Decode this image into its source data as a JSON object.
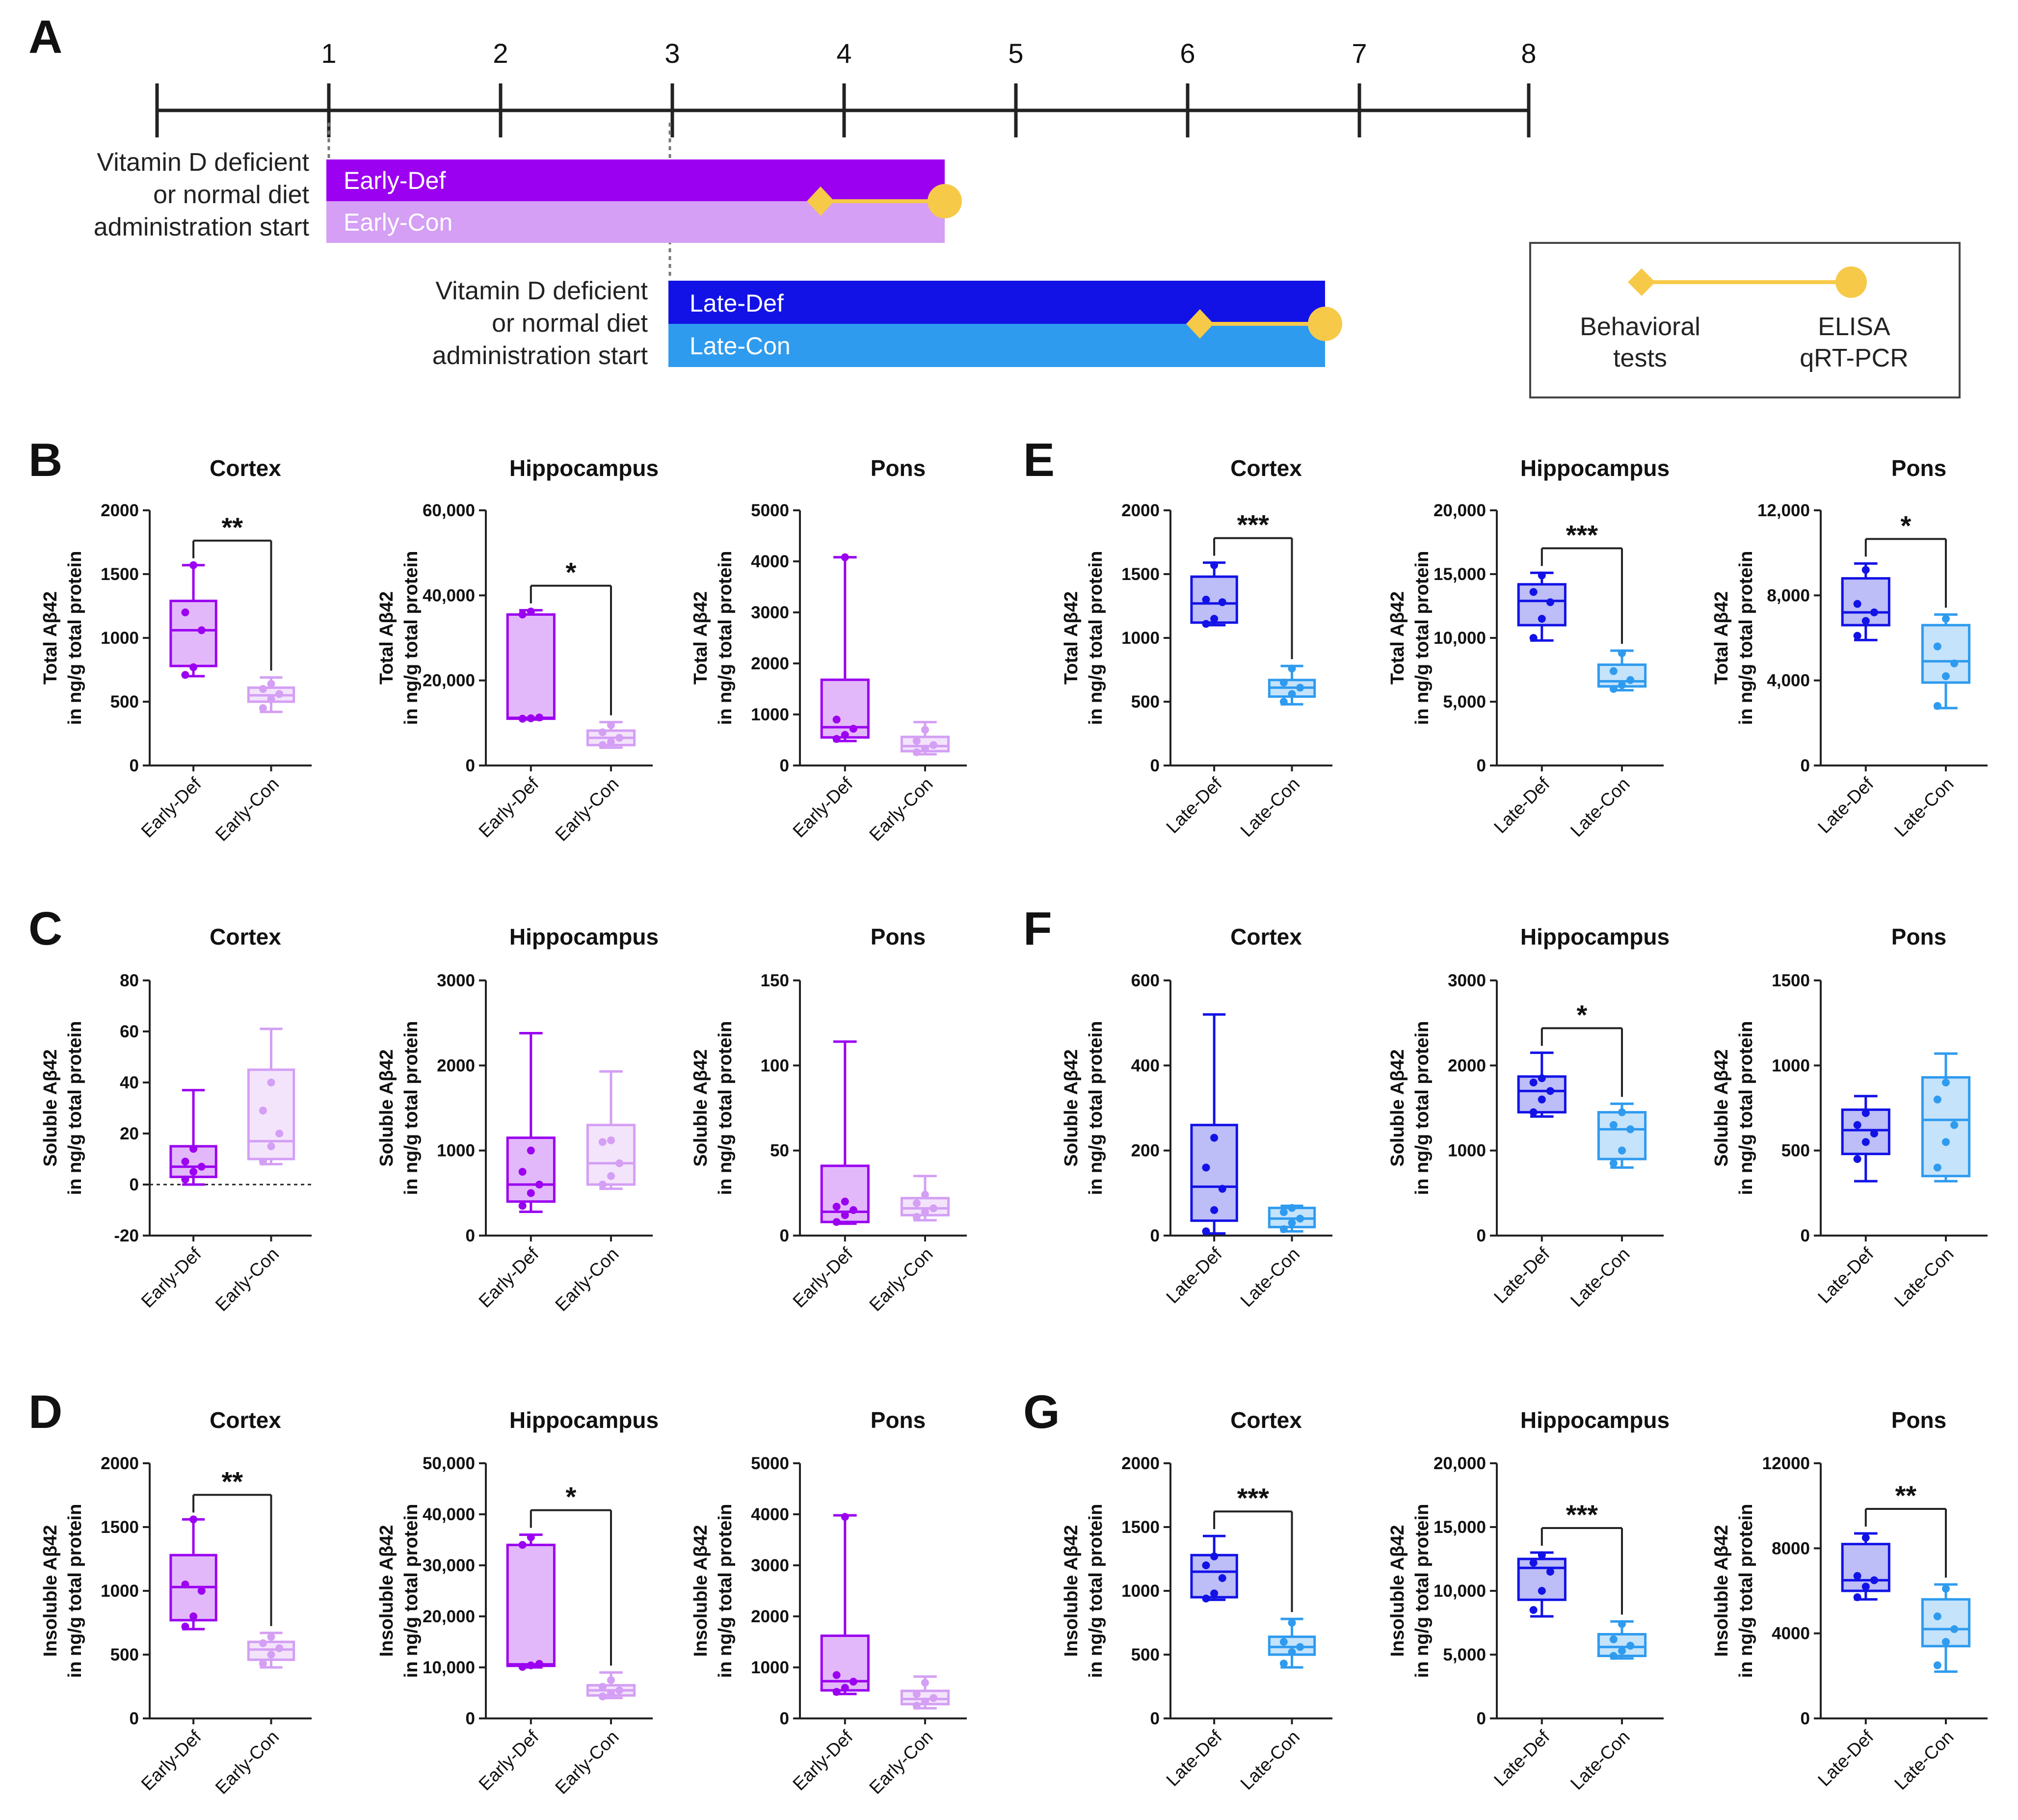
{
  "timeline": {
    "panel_label": "A",
    "ticks": [
      "1",
      "2",
      "3",
      "4",
      "5",
      "6",
      "7",
      "8"
    ],
    "early_start_text": [
      "Vitamin D deficient",
      "or normal diet",
      "administration start"
    ],
    "late_start_text": [
      "Vitamin D deficient",
      "or normal diet",
      "administration start"
    ],
    "bars": [
      {
        "label": "Early-Def",
        "color": "#9b00f0"
      },
      {
        "label": "Early-Con",
        "color": "#d49ff4"
      },
      {
        "label": "Late-Def",
        "color": "#1212e6"
      },
      {
        "label": "Late-Con",
        "color": "#2f9bef"
      }
    ],
    "marker_color": "#f7c948",
    "legend": {
      "left_line1": "Behavioral",
      "left_line2": "tests",
      "right_line1": "ELISA",
      "right_line2": "qRT-PCR"
    }
  },
  "colors": {
    "early_def": "#9b00f0",
    "early_con": "#d49ff4",
    "late_def": "#1212e6",
    "late_con": "#2f9bef"
  },
  "chart_data": [
    {
      "panel": "B",
      "type": "box",
      "title": "Cortex",
      "ylabel": [
        "Total Aβ42",
        "in ng/g total protein"
      ],
      "ylim": [
        0,
        2000
      ],
      "ticks": [
        "0",
        "500",
        "1000",
        "1500",
        "2000"
      ],
      "categories": [
        "Early-Def",
        "Early-Con"
      ],
      "colors": [
        "#9b00f0",
        "#d49ff4"
      ],
      "boxes": [
        {
          "min": 700,
          "q1": 780,
          "median": 1060,
          "q3": 1290,
          "max": 1570,
          "points": [
            710,
            770,
            1060,
            1200,
            1570
          ]
        },
        {
          "min": 420,
          "q1": 500,
          "median": 550,
          "q3": 610,
          "max": 690,
          "points": [
            450,
            520,
            560,
            600,
            640
          ]
        }
      ],
      "sig": "**"
    },
    {
      "panel": "B",
      "type": "box",
      "title": "Hippocampus",
      "ylabel": [
        "Total Aβ42",
        "in ng/g total protein"
      ],
      "ylim": [
        0,
        60000
      ],
      "ticks": [
        "0",
        "20,000",
        "40,000",
        "60,000"
      ],
      "categories": [
        "Early-Def",
        "Early-Con"
      ],
      "colors": [
        "#9b00f0",
        "#d49ff4"
      ],
      "boxes": [
        {
          "min": 10800,
          "q1": 11000,
          "median": 11200,
          "q3": 35500,
          "max": 36500,
          "points": [
            11000,
            11100,
            11300,
            35500,
            36200
          ]
        },
        {
          "min": 4200,
          "q1": 4800,
          "median": 6500,
          "q3": 8200,
          "max": 10200,
          "points": [
            4800,
            5500,
            6500,
            7800,
            9500
          ]
        }
      ],
      "sig": "*"
    },
    {
      "panel": "B",
      "type": "box",
      "title": "Pons",
      "ylabel": [
        "Total Aβ42",
        "in ng/g total protein"
      ],
      "ylim": [
        0,
        5000
      ],
      "ticks": [
        "0",
        "1000",
        "2000",
        "3000",
        "4000",
        "5000"
      ],
      "categories": [
        "Early-Def",
        "Early-Con"
      ],
      "colors": [
        "#9b00f0",
        "#d49ff4"
      ],
      "boxes": [
        {
          "min": 480,
          "q1": 550,
          "median": 750,
          "q3": 1680,
          "max": 4080,
          "points": [
            520,
            600,
            720,
            900,
            4080
          ]
        },
        {
          "min": 220,
          "q1": 280,
          "median": 380,
          "q3": 560,
          "max": 850,
          "points": [
            260,
            330,
            400,
            480,
            700
          ]
        }
      ],
      "sig": ""
    },
    {
      "panel": "E",
      "type": "box",
      "title": "Cortex",
      "ylabel": [
        "Total Aβ42",
        "in ng/g total protein"
      ],
      "ylim": [
        0,
        2000
      ],
      "ticks": [
        "0",
        "500",
        "1000",
        "1500",
        "2000"
      ],
      "categories": [
        "Late-Def",
        "Late-Con"
      ],
      "colors": [
        "#1212e6",
        "#2f9bef"
      ],
      "boxes": [
        {
          "min": 1100,
          "q1": 1120,
          "median": 1270,
          "q3": 1480,
          "max": 1590,
          "points": [
            1110,
            1150,
            1280,
            1300,
            1570
          ]
        },
        {
          "min": 480,
          "q1": 540,
          "median": 610,
          "q3": 670,
          "max": 780,
          "points": [
            500,
            560,
            610,
            650,
            760
          ]
        }
      ],
      "sig": "***"
    },
    {
      "panel": "E",
      "type": "box",
      "title": "Hippocampus",
      "ylabel": [
        "Total Aβ42",
        "in ng/g total protein"
      ],
      "ylim": [
        0,
        20000
      ],
      "ticks": [
        "0",
        "5,000",
        "10,000",
        "15,000",
        "20,000"
      ],
      "categories": [
        "Late-Def",
        "Late-Con"
      ],
      "colors": [
        "#1212e6",
        "#2f9bef"
      ],
      "boxes": [
        {
          "min": 9800,
          "q1": 11000,
          "median": 12900,
          "q3": 14200,
          "max": 15100,
          "points": [
            10000,
            11500,
            12800,
            13600,
            14900
          ]
        },
        {
          "min": 5900,
          "q1": 6200,
          "median": 6600,
          "q3": 7900,
          "max": 9000,
          "points": [
            6000,
            6300,
            6700,
            7400,
            8800
          ]
        }
      ],
      "sig": "***"
    },
    {
      "panel": "E",
      "type": "box",
      "title": "Pons",
      "ylabel": [
        "Total Aβ42",
        "in ng/g total protein"
      ],
      "ylim": [
        0,
        12000
      ],
      "ticks": [
        "0",
        "4,000",
        "8,000",
        "12,000"
      ],
      "categories": [
        "Late-Def",
        "Late-Con"
      ],
      "colors": [
        "#1212e6",
        "#2f9bef"
      ],
      "boxes": [
        {
          "min": 5900,
          "q1": 6600,
          "median": 7200,
          "q3": 8800,
          "max": 9500,
          "points": [
            6100,
            6800,
            7200,
            7600,
            9200
          ]
        },
        {
          "min": 2700,
          "q1": 3900,
          "median": 4900,
          "q3": 6600,
          "max": 7100,
          "points": [
            2800,
            4200,
            4800,
            5600,
            6900
          ]
        }
      ],
      "sig": "*"
    },
    {
      "panel": "C",
      "type": "box",
      "title": "Cortex",
      "ylabel": [
        "Soluble Aβ42",
        "in ng/g total protein"
      ],
      "ylim": [
        -20,
        80
      ],
      "ticks": [
        "-20",
        "0",
        "20",
        "40",
        "60",
        "80"
      ],
      "categories": [
        "Early-Def",
        "Early-Con"
      ],
      "colors": [
        "#9b00f0",
        "#d49ff4"
      ],
      "boxes": [
        {
          "min": 0,
          "q1": 3,
          "median": 7,
          "q3": 15,
          "max": 37,
          "points": [
            2,
            5,
            7,
            9,
            14
          ]
        },
        {
          "min": 8,
          "q1": 10,
          "median": 17,
          "q3": 45,
          "max": 61,
          "points": [
            9,
            15,
            20,
            29,
            40
          ]
        }
      ],
      "sig": "",
      "zero_line": true
    },
    {
      "panel": "C",
      "type": "box",
      "title": "Hippocampus",
      "ylabel": [
        "Soluble Aβ42",
        "in ng/g total protein"
      ],
      "ylim": [
        0,
        3000
      ],
      "ticks": [
        "0",
        "1000",
        "2000",
        "3000"
      ],
      "categories": [
        "Early-Def",
        "Early-Con"
      ],
      "colors": [
        "#9b00f0",
        "#d49ff4"
      ],
      "boxes": [
        {
          "min": 280,
          "q1": 400,
          "median": 600,
          "q3": 1150,
          "max": 2380,
          "points": [
            350,
            500,
            600,
            750,
            1000
          ]
        },
        {
          "min": 550,
          "q1": 600,
          "median": 850,
          "q3": 1300,
          "max": 1930,
          "points": [
            600,
            700,
            850,
            1100,
            1120
          ]
        }
      ],
      "sig": ""
    },
    {
      "panel": "C",
      "type": "box",
      "title": "Pons",
      "ylabel": [
        "Soluble Aβ42",
        "in ng/g total protein"
      ],
      "ylim": [
        0,
        150
      ],
      "ticks": [
        "0",
        "50",
        "100",
        "150"
      ],
      "categories": [
        "Early-Def",
        "Early-Con"
      ],
      "colors": [
        "#9b00f0",
        "#d49ff4"
      ],
      "boxes": [
        {
          "min": 7,
          "q1": 8,
          "median": 14,
          "q3": 41,
          "max": 114,
          "points": [
            8,
            12,
            15,
            17,
            20
          ]
        },
        {
          "min": 9,
          "q1": 12,
          "median": 16,
          "q3": 22,
          "max": 35,
          "points": [
            11,
            14,
            16,
            19,
            24
          ]
        }
      ],
      "sig": ""
    },
    {
      "panel": "F",
      "type": "box",
      "title": "Cortex",
      "ylabel": [
        "Soluble Aβ42",
        "in ng/g total protein"
      ],
      "ylim": [
        0,
        600
      ],
      "ticks": [
        "0",
        "200",
        "400",
        "600"
      ],
      "categories": [
        "Late-Def",
        "Late-Con"
      ],
      "colors": [
        "#1212e6",
        "#2f9bef"
      ],
      "boxes": [
        {
          "min": 5,
          "q1": 35,
          "median": 115,
          "q3": 260,
          "max": 520,
          "points": [
            10,
            60,
            110,
            160,
            230
          ]
        },
        {
          "min": 10,
          "q1": 20,
          "median": 40,
          "q3": 65,
          "max": 70,
          "points": [
            15,
            30,
            40,
            55,
            65
          ]
        }
      ],
      "sig": ""
    },
    {
      "panel": "F",
      "type": "box",
      "title": "Hippocampus",
      "ylabel": [
        "Soluble Aβ42",
        "in ng/g total protein"
      ],
      "ylim": [
        0,
        3000
      ],
      "ticks": [
        "0",
        "1000",
        "2000",
        "3000"
      ],
      "categories": [
        "Late-Def",
        "Late-Con"
      ],
      "colors": [
        "#1212e6",
        "#2f9bef"
      ],
      "boxes": [
        {
          "min": 1400,
          "q1": 1450,
          "median": 1700,
          "q3": 1870,
          "max": 2150,
          "points": [
            1450,
            1600,
            1700,
            1800,
            1850
          ]
        },
        {
          "min": 800,
          "q1": 900,
          "median": 1250,
          "q3": 1450,
          "max": 1550,
          "points": [
            850,
            1000,
            1250,
            1300,
            1450
          ]
        }
      ],
      "sig": "*"
    },
    {
      "panel": "F",
      "type": "box",
      "title": "Pons",
      "ylabel": [
        "Soluble Aβ42",
        "in ng/g total protein"
      ],
      "ylim": [
        0,
        1500
      ],
      "ticks": [
        "0",
        "500",
        "1000",
        "1500"
      ],
      "categories": [
        "Late-Def",
        "Late-Con"
      ],
      "colors": [
        "#1212e6",
        "#2f9bef"
      ],
      "boxes": [
        {
          "min": 320,
          "q1": 480,
          "median": 620,
          "q3": 740,
          "max": 820,
          "points": [
            450,
            550,
            600,
            650,
            720
          ]
        },
        {
          "min": 320,
          "q1": 350,
          "median": 680,
          "q3": 930,
          "max": 1070,
          "points": [
            400,
            550,
            650,
            800,
            900
          ]
        }
      ],
      "sig": ""
    },
    {
      "panel": "D",
      "type": "box",
      "title": "Cortex",
      "ylabel": [
        "Insoluble Aβ42",
        "in ng/g total protein"
      ],
      "ylim": [
        0,
        2000
      ],
      "ticks": [
        "0",
        "500",
        "1000",
        "1500",
        "2000"
      ],
      "categories": [
        "Early-Def",
        "Early-Con"
      ],
      "colors": [
        "#9b00f0",
        "#d49ff4"
      ],
      "boxes": [
        {
          "min": 700,
          "q1": 770,
          "median": 1030,
          "q3": 1280,
          "max": 1560,
          "points": [
            720,
            800,
            1000,
            1050,
            1560
          ]
        },
        {
          "min": 400,
          "q1": 460,
          "median": 540,
          "q3": 600,
          "max": 670,
          "points": [
            430,
            500,
            550,
            590,
            640
          ]
        }
      ],
      "sig": "**"
    },
    {
      "panel": "D",
      "type": "box",
      "title": "Hippocampus",
      "ylabel": [
        "Insoluble Aβ42",
        "in ng/g total protein"
      ],
      "ylim": [
        0,
        50000
      ],
      "ticks": [
        "0",
        "10,000",
        "20,000",
        "30,000",
        "40,000",
        "50,000"
      ],
      "categories": [
        "Early-Def",
        "Early-Con"
      ],
      "colors": [
        "#9b00f0",
        "#d49ff4"
      ],
      "boxes": [
        {
          "min": 10000,
          "q1": 10300,
          "median": 10600,
          "q3": 34000,
          "max": 36000,
          "points": [
            10100,
            10400,
            10700,
            34000,
            35500
          ]
        },
        {
          "min": 4000,
          "q1": 4500,
          "median": 5500,
          "q3": 6500,
          "max": 9000,
          "points": [
            4300,
            4900,
            5500,
            6200,
            7500
          ]
        }
      ],
      "sig": "*"
    },
    {
      "panel": "D",
      "type": "box",
      "title": "Pons",
      "ylabel": [
        "Insoluble Aβ42",
        "in ng/g total protein"
      ],
      "ylim": [
        0,
        5000
      ],
      "ticks": [
        "0",
        "1000",
        "2000",
        "3000",
        "4000",
        "5000"
      ],
      "categories": [
        "Early-Def",
        "Early-Con"
      ],
      "colors": [
        "#9b00f0",
        "#d49ff4"
      ],
      "boxes": [
        {
          "min": 480,
          "q1": 550,
          "median": 730,
          "q3": 1620,
          "max": 3980,
          "points": [
            520,
            600,
            720,
            850,
            3950
          ]
        },
        {
          "min": 200,
          "q1": 280,
          "median": 380,
          "q3": 540,
          "max": 820,
          "points": [
            250,
            330,
            400,
            480,
            700
          ]
        }
      ],
      "sig": ""
    },
    {
      "panel": "G",
      "type": "box",
      "title": "Cortex",
      "ylabel": [
        "Insoluble Aβ42",
        "in ng/g total protein"
      ],
      "ylim": [
        0,
        2000
      ],
      "ticks": [
        "0",
        "500",
        "1000",
        "1500",
        "2000"
      ],
      "categories": [
        "Late-Def",
        "Late-Con"
      ],
      "colors": [
        "#1212e6",
        "#2f9bef"
      ],
      "boxes": [
        {
          "min": 930,
          "q1": 950,
          "median": 1150,
          "q3": 1280,
          "max": 1430,
          "points": [
            940,
            980,
            1100,
            1200,
            1270
          ]
        },
        {
          "min": 400,
          "q1": 500,
          "median": 560,
          "q3": 640,
          "max": 780,
          "points": [
            430,
            520,
            560,
            600,
            750
          ]
        }
      ],
      "sig": "***"
    },
    {
      "panel": "G",
      "type": "box",
      "title": "Hippocampus",
      "ylabel": [
        "Insoluble Aβ42",
        "in ng/g total protein"
      ],
      "ylim": [
        0,
        20000
      ],
      "ticks": [
        "0",
        "5,000",
        "10,000",
        "15,000",
        "20,000"
      ],
      "categories": [
        "Late-Def",
        "Late-Con"
      ],
      "colors": [
        "#1212e6",
        "#2f9bef"
      ],
      "boxes": [
        {
          "min": 8000,
          "q1": 9300,
          "median": 11800,
          "q3": 12500,
          "max": 13000,
          "points": [
            8500,
            10000,
            11500,
            12200,
            12800
          ]
        },
        {
          "min": 4700,
          "q1": 4900,
          "median": 5600,
          "q3": 6600,
          "max": 7600,
          "points": [
            4900,
            5300,
            5700,
            6200,
            7400
          ]
        }
      ],
      "sig": "***"
    },
    {
      "panel": "G",
      "type": "box",
      "title": "Pons",
      "ylabel": [
        "Insoluble Aβ42",
        "in ng/g total protein"
      ],
      "ylim": [
        0,
        12000
      ],
      "ticks": [
        "0",
        "4000",
        "8000",
        "12000"
      ],
      "categories": [
        "Late-Def",
        "Late-Con"
      ],
      "colors": [
        "#1212e6",
        "#2f9bef"
      ],
      "boxes": [
        {
          "min": 5600,
          "q1": 6000,
          "median": 6500,
          "q3": 8200,
          "max": 8700,
          "points": [
            5700,
            6200,
            6500,
            6700,
            8500
          ]
        },
        {
          "min": 2200,
          "q1": 3400,
          "median": 4200,
          "q3": 5600,
          "max": 6300,
          "points": [
            2500,
            3600,
            4200,
            4800,
            6100
          ]
        }
      ],
      "sig": "**"
    }
  ],
  "row_panel_labels": [
    "B",
    "E",
    "C",
    "F",
    "D",
    "G"
  ]
}
